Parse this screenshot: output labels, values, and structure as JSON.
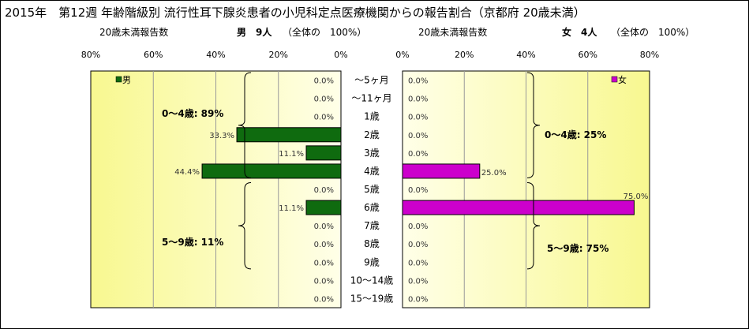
{
  "title": "2015年　第12週 年齢階級別 流行性耳下腺炎患者の小児科定点医療機関からの報告割合（京都府 20歳未満）",
  "male_header": {
    "left": "20歳未満報告数",
    "label": "男　9人",
    "total": "（全体の　100%）"
  },
  "female_header": {
    "left": "20歳未満報告数",
    "label": "女　4人",
    "total": "（全体の　100%）"
  },
  "colors": {
    "male": "#0f6b0f",
    "female": "#cc00cc",
    "bg_start": "#ffffe8",
    "bg_end": "#f8f890"
  },
  "chart_data": {
    "type": "bar",
    "orientation": "horizontal",
    "categories": [
      "～5ヶ月",
      "～11ヶ月",
      "1歳",
      "2歳",
      "3歳",
      "4歳",
      "5歳",
      "6歳",
      "7歳",
      "8歳",
      "9歳",
      "10～14歳",
      "15～19歳"
    ],
    "series": [
      {
        "name": "男",
        "values": [
          0.0,
          0.0,
          0.0,
          33.3,
          11.1,
          44.4,
          0.0,
          11.1,
          0.0,
          0.0,
          0.0,
          0.0,
          0.0
        ]
      },
      {
        "name": "女",
        "values": [
          0.0,
          0.0,
          0.0,
          0.0,
          0.0,
          25.0,
          0.0,
          75.0,
          0.0,
          0.0,
          0.0,
          0.0,
          0.0
        ]
      }
    ],
    "value_labels": {
      "male": [
        "0.0%",
        "0.0%",
        "0.0%",
        "33.3%",
        "11.1%",
        "44.4%",
        "0.0%",
        "11.1%",
        "0.0%",
        "0.0%",
        "0.0%",
        "0.0%",
        "0.0%"
      ],
      "female": [
        "0.0%",
        "0.0%",
        "0.0%",
        "0.0%",
        "0.0%",
        "25.0%",
        "0.0%",
        "75.0%",
        "0.0%",
        "0.0%",
        "0.0%",
        "0.0%",
        "0.0%"
      ]
    },
    "xlim": [
      0,
      80
    ],
    "ticks": [
      "80%",
      "60%",
      "40%",
      "20%",
      "0%"
    ],
    "ticks_female": [
      "0%",
      "20%",
      "40%",
      "60%",
      "80%"
    ],
    "legend_position": "top-left (male), top-right (female)",
    "annotations": {
      "male": [
        "0～4歳: 89%",
        "5～9歳: 11%"
      ],
      "female": [
        "0～4歳: 25%",
        "5～9歳: 75%"
      ]
    }
  }
}
